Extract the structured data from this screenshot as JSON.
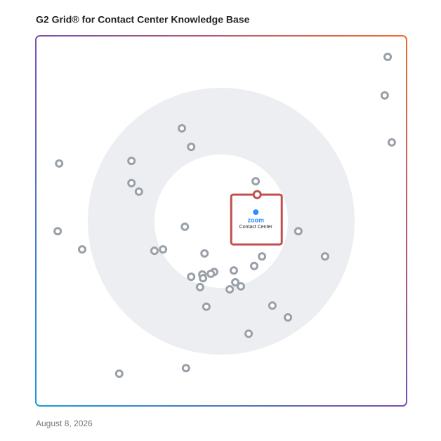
{
  "chart_data": {
    "type": "scatter",
    "title": "G2 Grid® for Contact Center Knowledge Base",
    "date": "August 8, 2026",
    "xlim": [
      0,
      100
    ],
    "ylim": [
      0,
      100
    ],
    "color": "#9aa0a8",
    "x": [
      94.9,
      94.1,
      96.0,
      39.4,
      41.9,
      6.3,
      25.8,
      25.8,
      27.8,
      59.3,
      5.9,
      12.5,
      40.2,
      32.0,
      34.3,
      45.5,
      61.0,
      70.8,
      78.0,
      58.9,
      53.4,
      48.1,
      47.2,
      44.9,
      45.1,
      41.9,
      53.8,
      55.3,
      52.3,
      44.3,
      46.0,
      63.8,
      68.0,
      57.4,
      40.5,
      22.5
    ],
    "values": [
      94.3,
      83.9,
      71.2,
      75.0,
      70.0,
      65.5,
      66.2,
      60.2,
      57.9,
      60.7,
      47.2,
      42.3,
      48.4,
      41.9,
      42.3,
      41.2,
      40.4,
      47.2,
      40.4,
      37.8,
      36.6,
      36.2,
      35.7,
      35.5,
      34.5,
      34.9,
      33.4,
      32.3,
      31.5,
      32.1,
      26.8,
      27.1,
      23.9,
      19.5,
      10.2,
      8.7
    ],
    "highlight": {
      "x": 59.7,
      "value": 57.1,
      "logo": "zoom",
      "name": "Contact Center",
      "color": "#c0504d"
    }
  }
}
